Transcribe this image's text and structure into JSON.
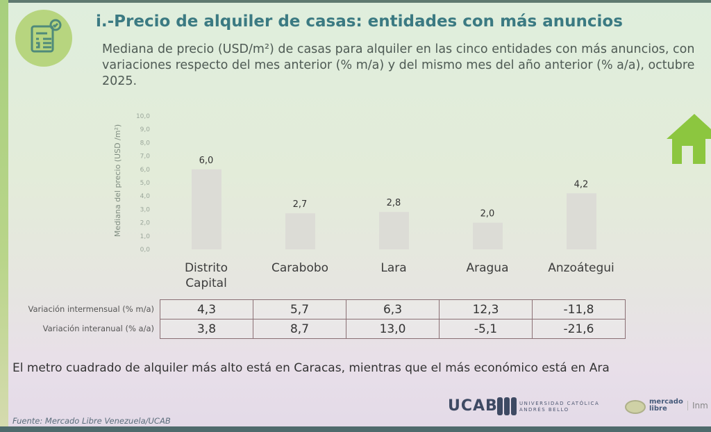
{
  "header": {
    "title": "i.-Precio de alquiler de casas: entidades con más anuncios",
    "subtitle": "Mediana de precio (USD/m²) de casas para alquiler en las cinco entidades con más anuncios, con variaciones respecto del mes anterior (% m/a) y del mismo mes del año anterior (% a/a), octubre 2025."
  },
  "chart_data": {
    "type": "bar",
    "title": "",
    "ylabel": "Mediana del precio (USD /m²)",
    "xlabel": "",
    "ylim": [
      0,
      10
    ],
    "yticks": [
      "0,0",
      "1,0",
      "2,0",
      "3,0",
      "4,0",
      "5,0",
      "6,0",
      "7,0",
      "8,0",
      "9,0",
      "10,0"
    ],
    "categories": [
      "Distrito Capital",
      "Carabobo",
      "Lara",
      "Aragua",
      "Anzoátegui"
    ],
    "values": [
      6.0,
      2.7,
      2.8,
      2.0,
      4.2
    ],
    "value_labels": [
      "6,0",
      "2,7",
      "2,8",
      "2,0",
      "4,2"
    ],
    "bar_color": "#dcdcd6"
  },
  "table": {
    "rows": [
      {
        "label": "Variación intermensual (% m/a)",
        "values": [
          "4,3",
          "5,7",
          "6,3",
          "12,3",
          "-11,8"
        ]
      },
      {
        "label": "Variación interanual (% a/a)",
        "values": [
          "3,8",
          "8,7",
          "13,0",
          "-5,1",
          "-21,6"
        ]
      }
    ]
  },
  "conclusion": "El metro cuadrado de alquiler más alto está en Caracas, mientras que el más económico está en Ara",
  "source": "Fuente: Mercado Libre Venezuela/UCAB",
  "logos": {
    "ucab": "UCAB",
    "ucab_sub1": "UNIVERSIDAD CATÓLICA",
    "ucab_sub2": "ANDRÉS BELLO",
    "ml1": "mercado",
    "ml2": "libre",
    "inm": "Inm"
  }
}
